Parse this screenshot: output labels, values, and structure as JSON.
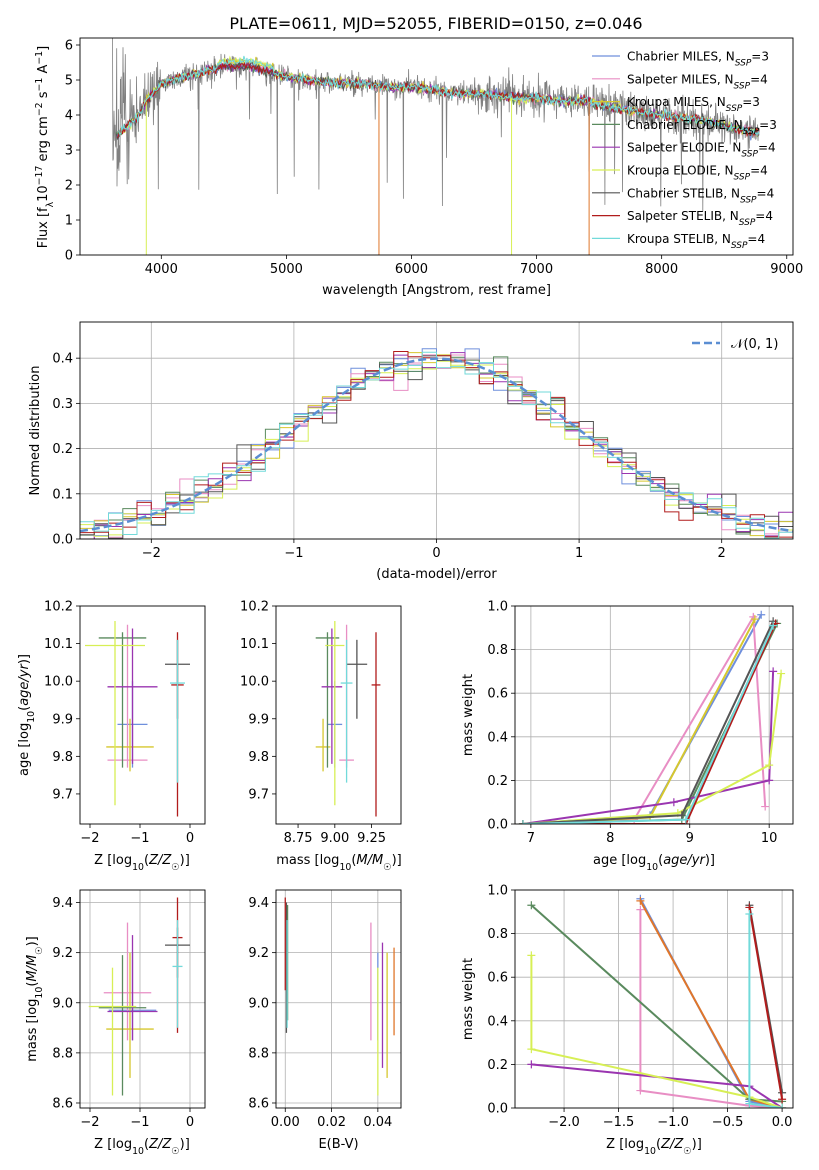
{
  "figure_title": "PLATE=0611, MJD=52055, FIBERID=0150, z=0.046",
  "colors": {
    "Chabrier MILES": "#6f8fdc",
    "Salpeter MILES": "#e88ec4",
    "Kroupa MILES": "#d6c72e",
    "Chabrier ELODIE": "#5a8a5e",
    "Salpeter ELODIE": "#9a35b0",
    "Kroupa ELODIE": "#d7ef55",
    "Chabrier STELIB": "#555555",
    "Salpeter STELIB": "#b11c1c",
    "Kroupa STELIB": "#72dada",
    "data": "#808080",
    "orange": "#e0762a",
    "normal_curve": "#5b8ed2"
  },
  "chart_data": [
    {
      "id": "spectrum",
      "type": "line",
      "title": "PLATE=0611, MJD=52055, FIBERID=0150, z=0.046",
      "xlabel": "wavelength [Angstrom, rest frame]",
      "ylabel": "Flux [f_λ 10^-17 erg cm^-2 s^-1 A^-1]",
      "xlim": [
        3350,
        9050
      ],
      "ylim": [
        0,
        6.2
      ],
      "xticks": [
        4000,
        5000,
        6000,
        7000,
        8000,
        9000
      ],
      "yticks": [
        0,
        1,
        2,
        3,
        4,
        5,
        6
      ],
      "grid": false,
      "legend_placement": "top-right",
      "data_x": [
        3650,
        3700,
        3800,
        3900,
        4000,
        4100,
        4200,
        4300,
        4400,
        4500,
        4600,
        4700,
        4800,
        4900,
        5000,
        5200,
        5400,
        5600,
        5800,
        6000,
        6200,
        6400,
        6600,
        6800,
        7000,
        7200,
        7400,
        7600,
        7800,
        8000,
        8200,
        8400,
        8600,
        8800
      ],
      "data_y": [
        3.4,
        3.6,
        3.9,
        4.5,
        4.9,
        5.0,
        5.1,
        5.2,
        5.3,
        5.4,
        5.4,
        5.4,
        5.3,
        5.2,
        5.1,
        5.0,
        4.9,
        4.9,
        4.8,
        4.8,
        4.7,
        4.6,
        4.6,
        4.5,
        4.5,
        4.4,
        4.4,
        4.2,
        4.1,
        4.0,
        3.9,
        3.8,
        3.6,
        3.5
      ],
      "legend": [
        {
          "name": "Chabrier MILES",
          "nssp": "3"
        },
        {
          "name": "Salpeter MILES",
          "nssp": "4"
        },
        {
          "name": "Kroupa MILES",
          "nssp": "3"
        },
        {
          "name": "Chabrier ELODIE",
          "nssp": "3"
        },
        {
          "name": "Salpeter ELODIE",
          "nssp": "4"
        },
        {
          "name": "Kroupa ELODIE",
          "nssp": "4"
        },
        {
          "name": "Chabrier STELIB",
          "nssp": "4"
        },
        {
          "name": "Salpeter STELIB",
          "nssp": "4"
        },
        {
          "name": "Kroupa STELIB",
          "nssp": "4"
        }
      ]
    },
    {
      "id": "residuals",
      "type": "line",
      "xlabel": "(data-model)/error",
      "ylabel": "Normed distribution",
      "xlim": [
        -2.5,
        2.5
      ],
      "ylim": [
        0,
        0.48
      ],
      "xticks": [
        -2,
        -1,
        0,
        1,
        2
      ],
      "yticks": [
        0.0,
        0.1,
        0.2,
        0.3,
        0.4
      ],
      "grid": true,
      "legend_placement": "top-right",
      "legend": [
        "𝒩(0, 1)"
      ],
      "bin_width": 0.1
    },
    {
      "id": "age_vs_Z",
      "type": "scatter",
      "xlabel": "Z [log10(Z/Z☉)]",
      "ylabel": "age [log10(age/yr)]",
      "xlim": [
        -2.2,
        0.3
      ],
      "ylim": [
        9.62,
        10.2
      ],
      "xticks": [
        -2,
        -1,
        0
      ],
      "yticks": [
        9.7,
        9.8,
        9.9,
        10.0,
        10.1,
        10.2
      ],
      "grid": false,
      "points": [
        {
          "model": "Chabrier MILES",
          "x": -1.15,
          "y": 9.885,
          "xerr": 0.6,
          "yerr": [
            9.77,
            10.0
          ]
        },
        {
          "model": "Salpeter MILES",
          "x": -1.25,
          "y": 9.79,
          "xerr": 0.8,
          "yerr": [
            9.77,
            10.15
          ]
        },
        {
          "model": "Kroupa MILES",
          "x": -1.2,
          "y": 9.825,
          "xerr": 0.95,
          "yerr": [
            9.76,
            9.9
          ]
        },
        {
          "model": "Chabrier ELODIE",
          "x": -1.35,
          "y": 10.115,
          "xerr": 0.95,
          "yerr": [
            9.77,
            10.13
          ]
        },
        {
          "model": "Salpeter ELODIE",
          "x": -1.15,
          "y": 9.985,
          "xerr": 1.0,
          "yerr": [
            9.78,
            10.14
          ]
        },
        {
          "model": "Kroupa ELODIE",
          "x": -1.5,
          "y": 10.095,
          "xerr": 1.2,
          "yerr": [
            9.67,
            10.16
          ]
        },
        {
          "model": "Chabrier STELIB",
          "x": -0.25,
          "y": 10.045,
          "xerr": 0.5,
          "yerr": [
            9.9,
            10.11
          ]
        },
        {
          "model": "Salpeter STELIB",
          "x": -0.25,
          "y": 9.99,
          "xerr": 0.25,
          "yerr": [
            9.64,
            10.13
          ]
        },
        {
          "model": "Kroupa STELIB",
          "x": -0.25,
          "y": 9.995,
          "xerr": 0.3,
          "yerr": [
            9.73,
            10.11
          ]
        }
      ]
    },
    {
      "id": "age_vs_mass",
      "type": "scatter",
      "xlabel": "mass [log10(M/M☉)]",
      "ylabel": "",
      "xlim": [
        8.6,
        9.45
      ],
      "ylim": [
        9.62,
        10.2
      ],
      "xticks": [
        8.75,
        9.0,
        9.25
      ],
      "xticklabels": [
        "8.75",
        "9.00",
        "9.25"
      ],
      "yticks": [
        9.7,
        9.8,
        9.9,
        10.0,
        10.1,
        10.2
      ],
      "grid": false,
      "points": [
        {
          "model": "Chabrier MILES",
          "x": 9.0,
          "y": 9.885,
          "xerr": 0.1,
          "yerr": [
            9.77,
            10.0
          ]
        },
        {
          "model": "Salpeter MILES",
          "x": 9.08,
          "y": 9.79,
          "xerr": 0.1,
          "yerr": [
            9.77,
            10.15
          ]
        },
        {
          "model": "Kroupa MILES",
          "x": 8.92,
          "y": 9.825,
          "xerr": 0.1,
          "yerr": [
            9.76,
            9.9
          ]
        },
        {
          "model": "Chabrier ELODIE",
          "x": 8.95,
          "y": 10.115,
          "xerr": 0.16,
          "yerr": [
            9.77,
            10.13
          ]
        },
        {
          "model": "Salpeter ELODIE",
          "x": 8.98,
          "y": 9.985,
          "xerr": 0.14,
          "yerr": [
            9.78,
            10.14
          ]
        },
        {
          "model": "Kroupa ELODIE",
          "x": 9.0,
          "y": 10.095,
          "xerr": 0.13,
          "yerr": [
            9.67,
            10.16
          ]
        },
        {
          "model": "Chabrier STELIB",
          "x": 9.15,
          "y": 10.045,
          "xerr": 0.14,
          "yerr": [
            9.9,
            10.11
          ]
        },
        {
          "model": "Salpeter STELIB",
          "x": 9.28,
          "y": 9.99,
          "xerr": 0.06,
          "yerr": [
            9.64,
            10.13
          ]
        },
        {
          "model": "Kroupa STELIB",
          "x": 9.08,
          "y": 9.995,
          "xerr": 0.08,
          "yerr": [
            9.73,
            10.11
          ]
        }
      ]
    },
    {
      "id": "weight_vs_age",
      "type": "line",
      "xlabel": "age [log10(age/yr)]",
      "ylabel": "mass weight",
      "xlim": [
        6.8,
        10.3
      ],
      "ylim": [
        0,
        1.0
      ],
      "xticks": [
        7,
        8,
        9,
        10
      ],
      "yticks": [
        0.0,
        0.2,
        0.4,
        0.6,
        0.8,
        1.0
      ],
      "grid": true,
      "series": [
        {
          "model": "Chabrier MILES",
          "points": [
            [
              6.9,
              0.0
            ],
            [
              8.5,
              0.04
            ],
            [
              9.9,
              0.96
            ]
          ]
        },
        {
          "model": "Salpeter MILES",
          "points": [
            [
              6.9,
              0.0
            ],
            [
              8.3,
              0.02
            ],
            [
              9.8,
              0.95
            ],
            [
              9.95,
              0.08
            ]
          ]
        },
        {
          "model": "Kroupa MILES",
          "points": [
            [
              6.9,
              0.0
            ],
            [
              8.5,
              0.03
            ],
            [
              9.82,
              0.94
            ]
          ]
        },
        {
          "model": "Chabrier ELODIE",
          "points": [
            [
              6.9,
              0.0
            ],
            [
              8.9,
              0.02
            ],
            [
              10.1,
              0.92
            ]
          ]
        },
        {
          "model": "Salpeter ELODIE",
          "points": [
            [
              6.9,
              0.0
            ],
            [
              8.8,
              0.1
            ],
            [
              10.0,
              0.2
            ],
            [
              10.05,
              0.7
            ]
          ]
        },
        {
          "model": "Kroupa ELODIE",
          "points": [
            [
              6.9,
              0.0
            ],
            [
              8.85,
              0.05
            ],
            [
              10.0,
              0.27
            ],
            [
              10.15,
              0.69
            ]
          ]
        },
        {
          "model": "Chabrier STELIB",
          "points": [
            [
              6.9,
              0.0
            ],
            [
              8.9,
              0.04
            ],
            [
              10.05,
              0.93
            ]
          ]
        },
        {
          "model": "Salpeter STELIB",
          "points": [
            [
              6.9,
              0.0
            ],
            [
              8.95,
              0.0
            ],
            [
              10.08,
              0.92
            ]
          ]
        },
        {
          "model": "Kroupa STELIB",
          "points": [
            [
              6.9,
              0.0
            ],
            [
              8.95,
              0.02
            ],
            [
              10.05,
              0.91
            ]
          ]
        }
      ]
    },
    {
      "id": "mass_vs_Z",
      "type": "scatter",
      "xlabel": "Z [log10(Z/Z☉)]",
      "ylabel": "mass [log10(M/M☉)]",
      "xlim": [
        -2.2,
        0.3
      ],
      "ylim": [
        8.58,
        9.45
      ],
      "xticks": [
        -2,
        -1,
        0
      ],
      "yticks": [
        8.6,
        8.8,
        9.0,
        9.2,
        9.4
      ],
      "grid": true,
      "points": [
        {
          "model": "Chabrier MILES",
          "x": -1.15,
          "y": 8.97,
          "xerr": 0.95,
          "yerr": [
            8.85,
            9.2
          ]
        },
        {
          "model": "Salpeter MILES",
          "x": -1.25,
          "y": 9.04,
          "xerr": 0.95,
          "yerr": [
            8.85,
            9.32
          ]
        },
        {
          "model": "Kroupa MILES",
          "x": -1.2,
          "y": 8.895,
          "xerr": 0.95,
          "yerr": [
            8.7,
            9.2
          ]
        },
        {
          "model": "Chabrier ELODIE",
          "x": -1.35,
          "y": 8.98,
          "xerr": 0.95,
          "yerr": [
            8.63,
            9.19
          ]
        },
        {
          "model": "Salpeter ELODIE",
          "x": -1.15,
          "y": 8.965,
          "xerr": 1.0,
          "yerr": [
            8.85,
            9.27
          ]
        },
        {
          "model": "Kroupa ELODIE",
          "x": -1.55,
          "y": 8.985,
          "xerr": 0.95,
          "yerr": [
            8.63,
            9.14
          ]
        },
        {
          "model": "Chabrier STELIB",
          "x": -0.25,
          "y": 9.23,
          "xerr": 0.5,
          "yerr": [
            9.1,
            9.3
          ]
        },
        {
          "model": "Salpeter STELIB",
          "x": -0.25,
          "y": 9.26,
          "xerr": 0.2,
          "yerr": [
            8.88,
            9.42
          ]
        },
        {
          "model": "Kroupa STELIB",
          "x": -0.25,
          "y": 9.145,
          "xerr": 0.2,
          "yerr": [
            8.9,
            9.33
          ]
        }
      ]
    },
    {
      "id": "mass_vs_EBV",
      "type": "scatter",
      "xlabel": "E(B-V)",
      "ylabel": "",
      "xlim": [
        -0.004,
        0.05
      ],
      "ylim": [
        8.58,
        9.45
      ],
      "xticks": [
        0.0,
        0.02,
        0.04
      ],
      "xticklabels": [
        "0.00",
        "0.02",
        "0.04"
      ],
      "yticks": [
        8.6,
        8.8,
        9.0,
        9.2,
        9.4
      ],
      "grid": true,
      "points": [
        {
          "model": "Chabrier MILES",
          "x": 0.04,
          "yerr": [
            8.85,
            9.2
          ]
        },
        {
          "model": "Salpeter MILES",
          "x": 0.037,
          "yerr": [
            8.85,
            9.32
          ]
        },
        {
          "model": "Kroupa MILES",
          "x": 0.044,
          "yerr": [
            8.7,
            9.2
          ]
        },
        {
          "model": "Chabrier ELODIE",
          "x": 0.001,
          "yerr": [
            8.93,
            9.39
          ]
        },
        {
          "model": "Salpeter ELODIE",
          "x": 0.042,
          "yerr": [
            8.74,
            9.24
          ]
        },
        {
          "model": "Kroupa ELODIE",
          "x": 0.04,
          "yerr": [
            8.63,
            9.14
          ]
        },
        {
          "model": "Chabrier STELIB",
          "x": 0.0005,
          "yerr": [
            8.88,
            9.4
          ]
        },
        {
          "model": "Salpeter STELIB",
          "x": 0.0,
          "yerr": [
            9.05,
            9.42
          ]
        },
        {
          "model": "Kroupa STELIB",
          "x": 0.0008,
          "yerr": [
            8.9,
            9.33
          ]
        },
        {
          "model": "orange",
          "x": 0.047,
          "yerr": [
            8.87,
            9.22
          ]
        }
      ]
    },
    {
      "id": "weight_vs_Z",
      "type": "line",
      "xlabel": "Z [log10(Z/Z☉)]",
      "ylabel": "mass weight",
      "xlim": [
        -2.45,
        0.1
      ],
      "ylim": [
        0,
        1.0
      ],
      "xticks": [
        -2.0,
        -1.5,
        -1.0,
        -0.5,
        0.0
      ],
      "xticklabels": [
        "−2.0",
        "−1.5",
        "−1.0",
        "−0.5",
        "0.0"
      ],
      "yticks": [
        0.0,
        0.2,
        0.4,
        0.6,
        0.8,
        1.0
      ],
      "grid": true,
      "series": [
        {
          "model": "Chabrier MILES",
          "points": [
            [
              -1.3,
              0.96
            ],
            [
              -0.3,
              0.03
            ],
            [
              0.0,
              0.0
            ]
          ]
        },
        {
          "model": "Salpeter MILES",
          "points": [
            [
              -1.3,
              0.91
            ],
            [
              -1.3,
              0.08
            ],
            [
              -0.3,
              0.01
            ],
            [
              0.0,
              0.0
            ]
          ]
        },
        {
          "model": "orange",
          "points": [
            [
              -1.3,
              0.95
            ],
            [
              -0.3,
              0.04
            ],
            [
              0.0,
              0.0
            ]
          ]
        },
        {
          "model": "Chabrier ELODIE",
          "points": [
            [
              -2.3,
              0.93
            ],
            [
              -0.3,
              0.04
            ],
            [
              0.0,
              0.03
            ]
          ]
        },
        {
          "model": "Salpeter ELODIE",
          "points": [
            [
              -2.3,
              0.2
            ],
            [
              -0.3,
              0.1
            ],
            [
              0.0,
              0.0
            ]
          ]
        },
        {
          "model": "Kroupa ELODIE",
          "points": [
            [
              -2.3,
              0.7
            ],
            [
              -2.3,
              0.27
            ],
            [
              -0.3,
              0.05
            ],
            [
              0.0,
              0.0
            ]
          ]
        },
        {
          "model": "Chabrier STELIB",
          "points": [
            [
              -0.3,
              0.93
            ],
            [
              0.0,
              0.07
            ]
          ]
        },
        {
          "model": "Salpeter STELIB",
          "points": [
            [
              -0.3,
              0.92
            ],
            [
              0.0,
              0.04
            ]
          ]
        },
        {
          "model": "Kroupa STELIB",
          "points": [
            [
              -0.3,
              0.89
            ],
            [
              -0.3,
              0.02
            ],
            [
              0.0,
              0.0
            ]
          ]
        }
      ]
    }
  ]
}
